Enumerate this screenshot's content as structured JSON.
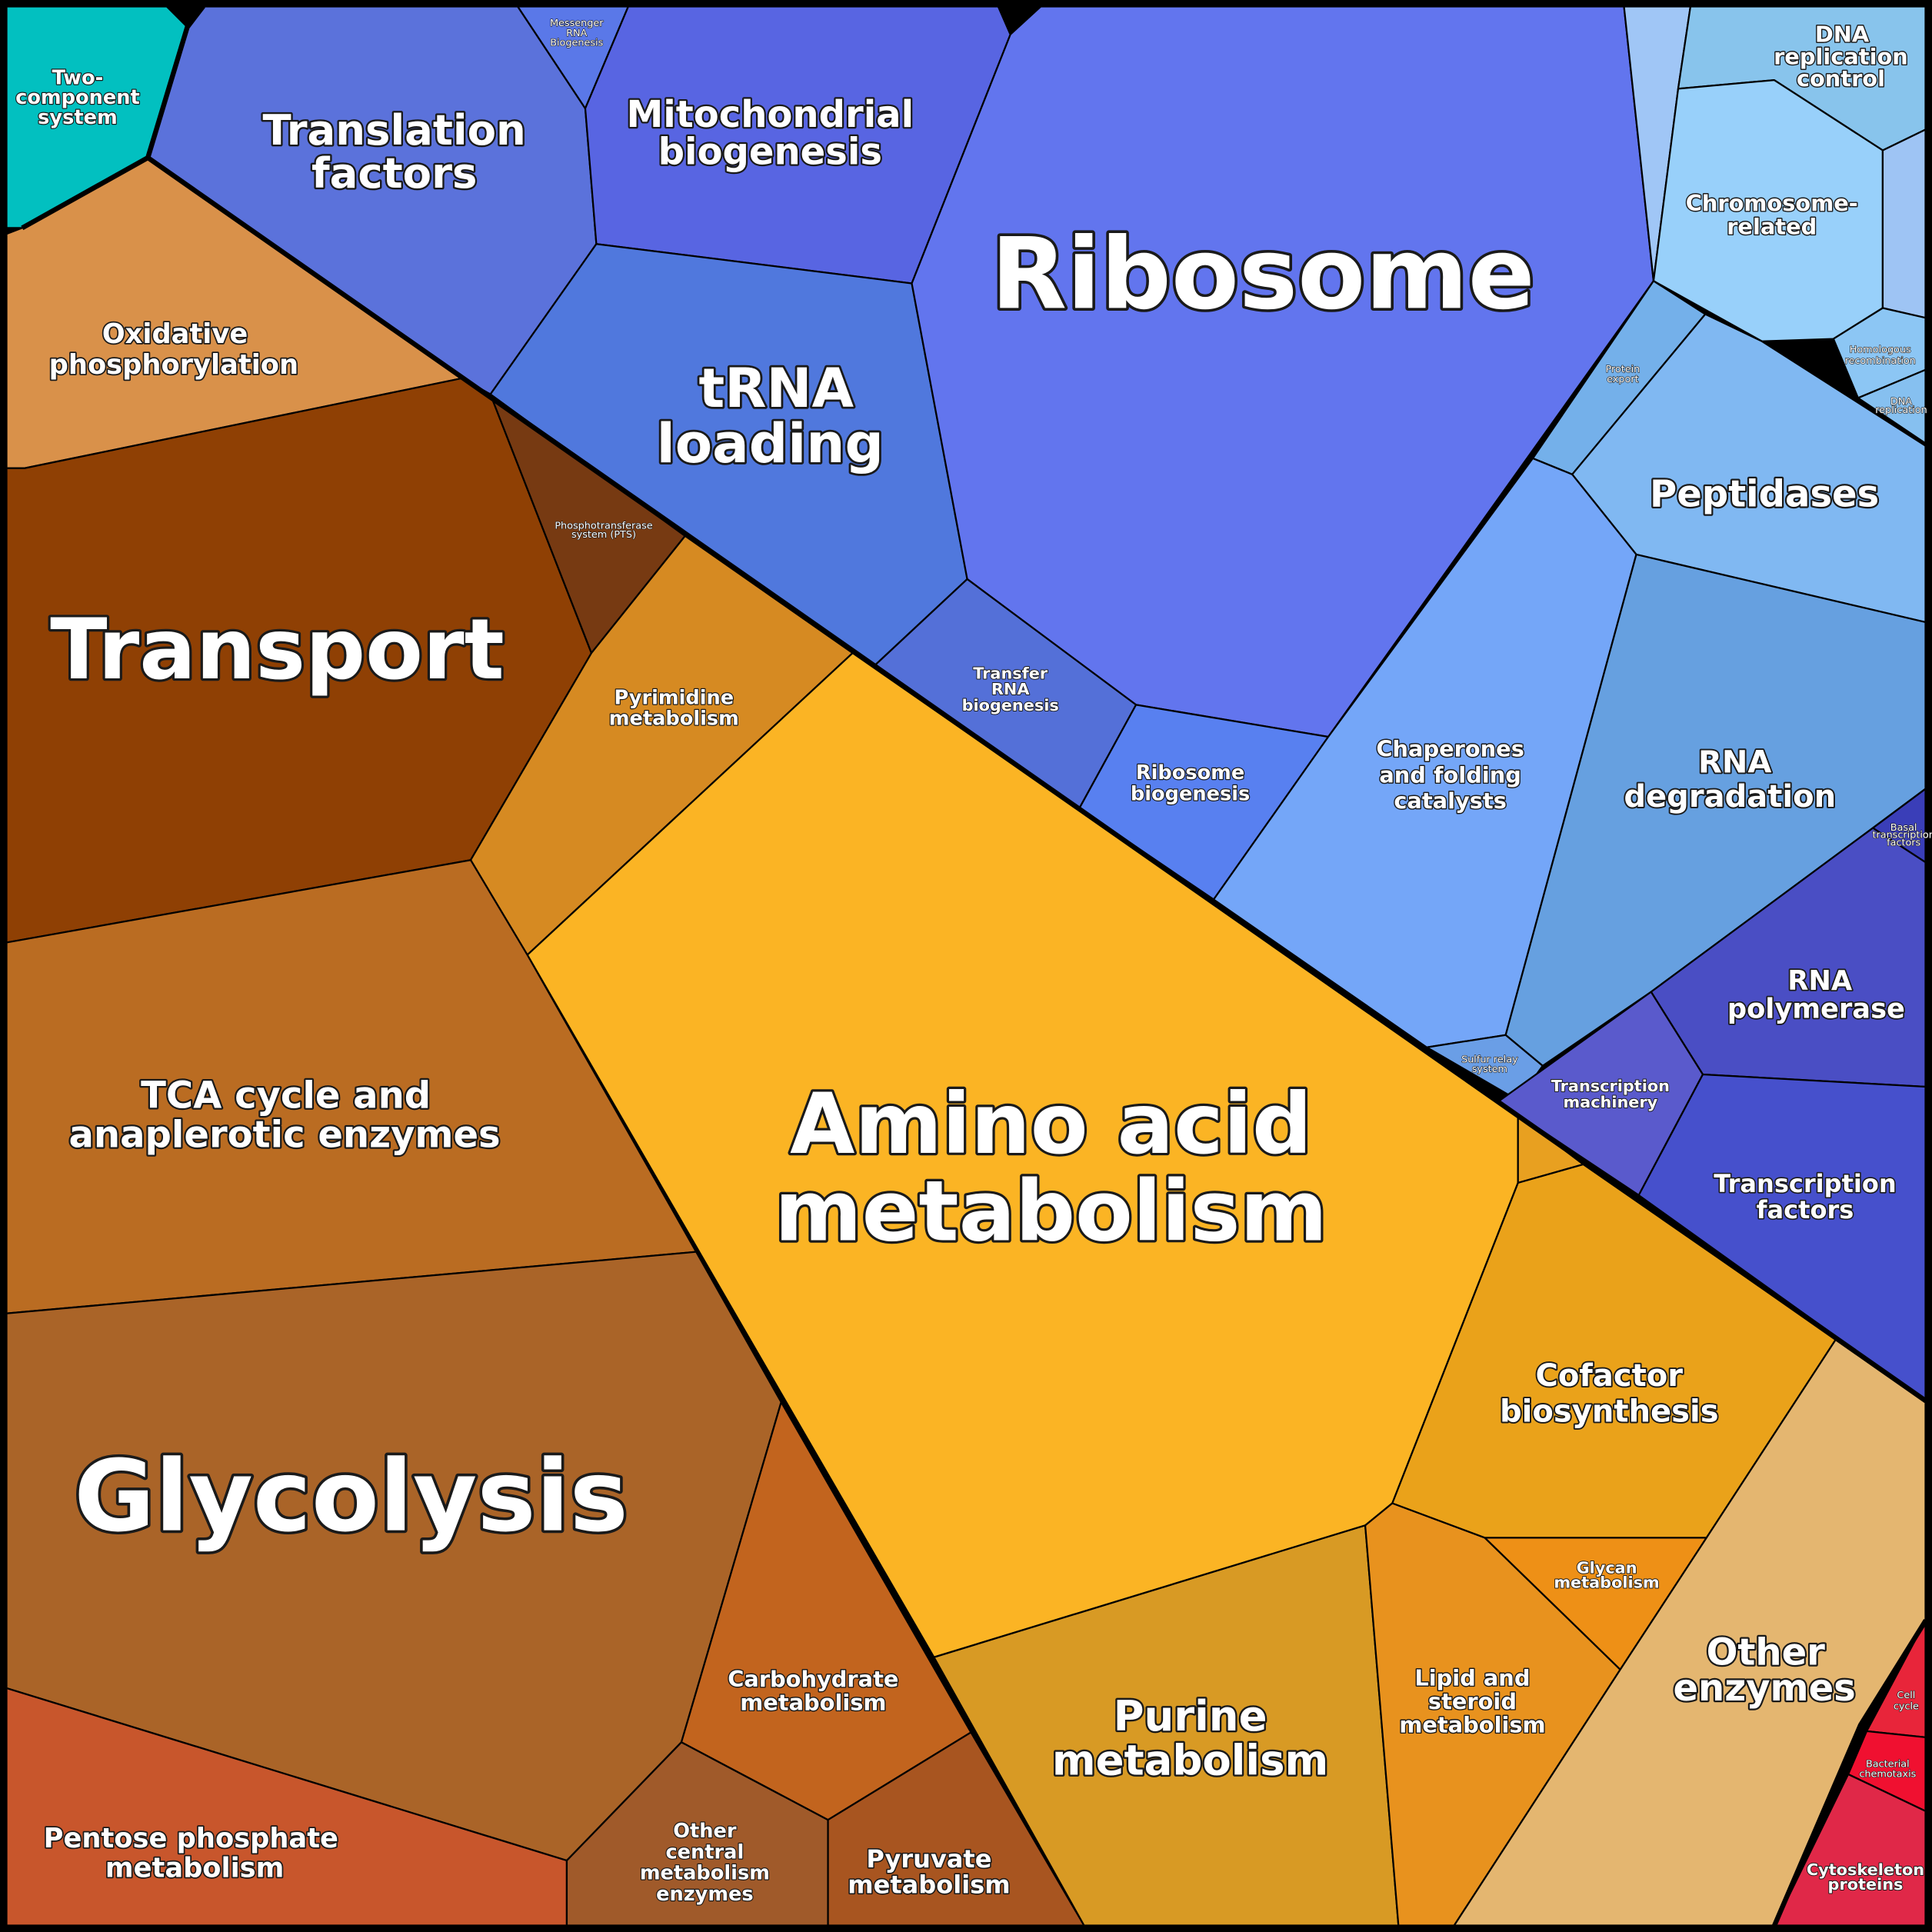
{
  "cells": [
    {
      "label": [
        "Two-",
        "component",
        "system"
      ]
    },
    {
      "label": [
        "Translation",
        "factors"
      ]
    },
    {
      "label": [
        "Messenger",
        "RNA",
        "Biogenesis"
      ]
    },
    {
      "label": [
        "Mitochondrial",
        "biogenesis"
      ]
    },
    {
      "label": [
        "tRNA",
        "loading"
      ]
    },
    {
      "label": [
        "Ribosome"
      ]
    },
    {
      "label": [
        "Transfer",
        "RNA",
        "biogenesis"
      ]
    },
    {
      "label": [
        "Ribosome",
        "biogenesis"
      ]
    },
    {
      "label": [
        "DNA",
        "replication",
        "control"
      ]
    },
    {
      "label": [
        "Chromosome-",
        "related"
      ]
    },
    {
      "label": [
        "Homologous",
        "recombination"
      ]
    },
    {
      "label": [
        "DNA",
        "replication"
      ]
    },
    {
      "label": [
        "Protein",
        "export"
      ]
    },
    {
      "label": [
        "Peptidases"
      ]
    },
    {
      "label": [
        "Chaperones",
        "and folding",
        "catalysts"
      ]
    },
    {
      "label": [
        "RNA",
        "degradation"
      ]
    },
    {
      "label": [
        "Sulfur relay",
        "system"
      ]
    },
    {
      "label": [
        "Basal",
        "transcription",
        "factors"
      ]
    },
    {
      "label": [
        "RNA",
        "polymerase"
      ]
    },
    {
      "label": [
        "Transcription",
        "machinery"
      ]
    },
    {
      "label": [
        "Transcription",
        "factors"
      ]
    },
    {
      "label": [
        "Oxidative",
        "phosphorylation"
      ]
    },
    {
      "label": [
        "Transport"
      ]
    },
    {
      "label": [
        "Phosphotransferase",
        "system (PTS)"
      ]
    },
    {
      "label": [
        "Pyrimidine",
        "metabolism"
      ]
    },
    {
      "label": [
        "Amino acid",
        "metabolism"
      ]
    },
    {
      "label": [
        "TCA cycle and",
        "anaplerotic enzymes"
      ]
    },
    {
      "label": [
        "Glycolysis"
      ]
    },
    {
      "label": [
        "Pentose phosphate",
        "metabolism"
      ]
    },
    {
      "label": [
        "Carbohydrate",
        "metabolism"
      ]
    },
    {
      "label": [
        "Other",
        "central",
        "metabolism",
        "enzymes"
      ]
    },
    {
      "label": [
        "Pyruvate",
        "metabolism"
      ]
    },
    {
      "label": [
        "Purine",
        "metabolism"
      ]
    },
    {
      "label": [
        "Lipid and",
        "steroid",
        "metabolism"
      ]
    },
    {
      "label": [
        "Glycan",
        "metabolism"
      ]
    },
    {
      "label": [
        "Cofactor",
        "biosynthesis"
      ]
    },
    {
      "label": [
        "Other",
        "enzymes"
      ]
    },
    {
      "label": [
        "Cell",
        "cycle"
      ]
    },
    {
      "label": [
        "Bacterial",
        "chemotaxis"
      ]
    },
    {
      "label": [
        "Cytoskeleton",
        "proteins"
      ]
    }
  ]
}
